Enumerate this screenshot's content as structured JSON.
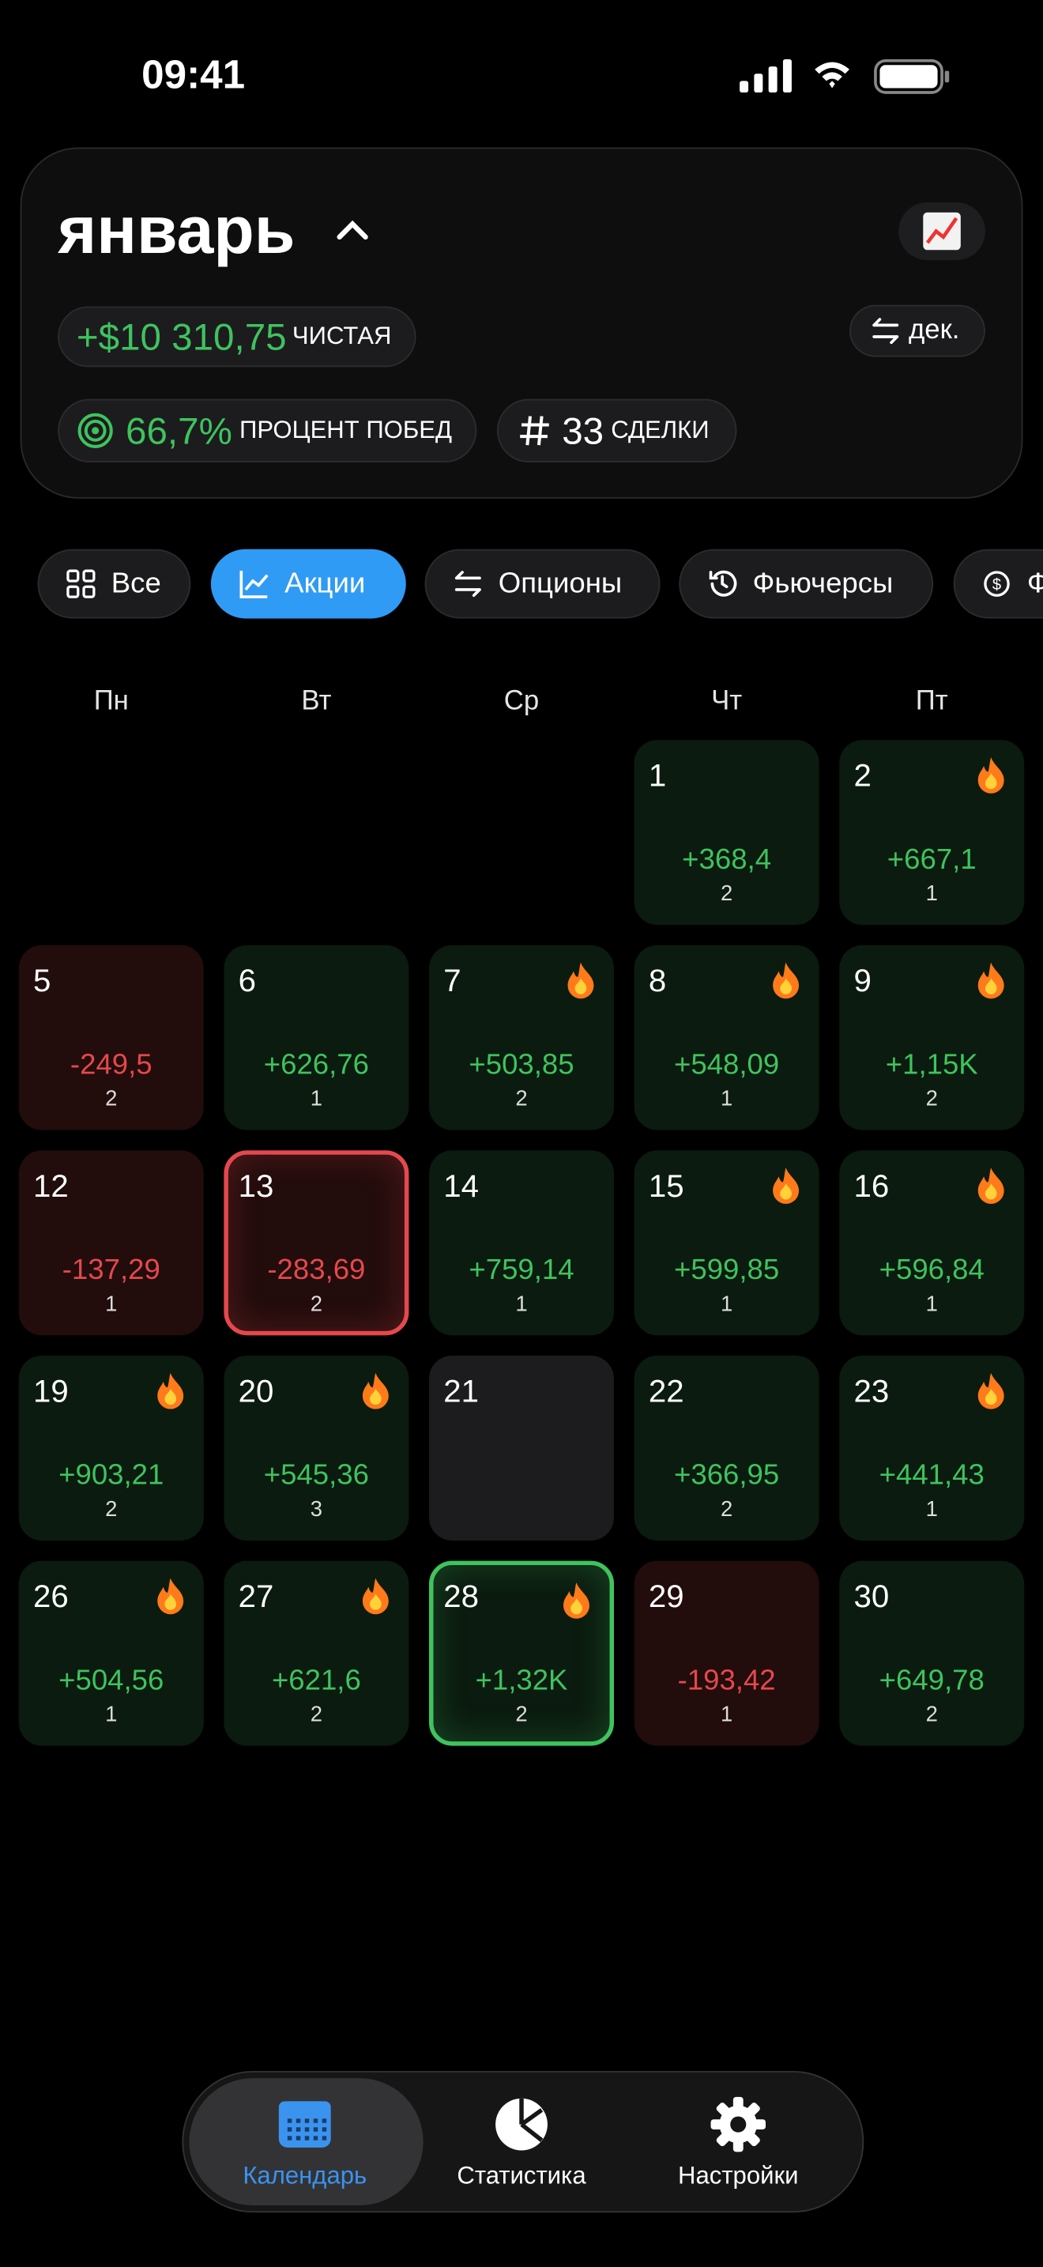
{
  "status_bar": {
    "time": "09:41"
  },
  "header": {
    "month": "январь",
    "net_pnl": "+$10 310,75",
    "net_label": "ЧИСТАЯ",
    "prev_month": "дек.",
    "win_rate": "66,7%",
    "win_rate_label": "ПРОЦЕНТ ПОБЕД",
    "trades": "33",
    "trades_label": "СДЕЛКИ"
  },
  "filters": [
    {
      "label": "Все",
      "icon": "grid"
    },
    {
      "label": "Акции",
      "icon": "chart",
      "active": true
    },
    {
      "label": "Опционы",
      "icon": "swap"
    },
    {
      "label": "Фьючерсы",
      "icon": "clock"
    },
    {
      "label": "Ф",
      "icon": "coin"
    }
  ],
  "weekdays": [
    "Пн",
    "Вт",
    "Ср",
    "Чт",
    "Пт"
  ],
  "days": [
    {
      "day": 1,
      "pnl": "+368,4",
      "trades": 2
    },
    {
      "day": 2,
      "pnl": "+667,1",
      "trades": 1,
      "fire": true
    },
    {
      "day": 5,
      "pnl": "-249,5",
      "trades": 2
    },
    {
      "day": 6,
      "pnl": "+626,76",
      "trades": 1
    },
    {
      "day": 7,
      "pnl": "+503,85",
      "trades": 2,
      "fire": true
    },
    {
      "day": 8,
      "pnl": "+548,09",
      "trades": 1,
      "fire": true
    },
    {
      "day": 9,
      "pnl": "+1,15K",
      "trades": 2,
      "fire": true
    },
    {
      "day": 12,
      "pnl": "-137,29",
      "trades": 1
    },
    {
      "day": 13,
      "pnl": "-283,69",
      "trades": 2,
      "highlight": true
    },
    {
      "day": 14,
      "pnl": "+759,14",
      "trades": 1
    },
    {
      "day": 15,
      "pnl": "+599,85",
      "trades": 1,
      "fire": true
    },
    {
      "day": 16,
      "pnl": "+596,84",
      "trades": 1,
      "fire": true
    },
    {
      "day": 19,
      "pnl": "+903,21",
      "trades": 2,
      "fire": true
    },
    {
      "day": 20,
      "pnl": "+545,36",
      "trades": 3,
      "fire": true
    },
    {
      "day": 21
    },
    {
      "day": 22,
      "pnl": "+366,95",
      "trades": 2
    },
    {
      "day": 23,
      "pnl": "+441,43",
      "trades": 1,
      "fire": true
    },
    {
      "day": 26,
      "pnl": "+504,56",
      "trades": 1,
      "fire": true
    },
    {
      "day": 27,
      "pnl": "+621,6",
      "trades": 2,
      "fire": true
    },
    {
      "day": 28,
      "pnl": "+1,32K",
      "trades": 2,
      "fire": true,
      "highlight": true
    },
    {
      "day": 29,
      "pnl": "-193,42",
      "trades": 1
    },
    {
      "day": 30,
      "pnl": "+649,78",
      "trades": 2
    }
  ],
  "tabs": [
    {
      "label": "Календарь",
      "icon": "calendar",
      "active": true
    },
    {
      "label": "Статистика",
      "icon": "pie"
    },
    {
      "label": "Настройки",
      "icon": "gear"
    }
  ]
}
